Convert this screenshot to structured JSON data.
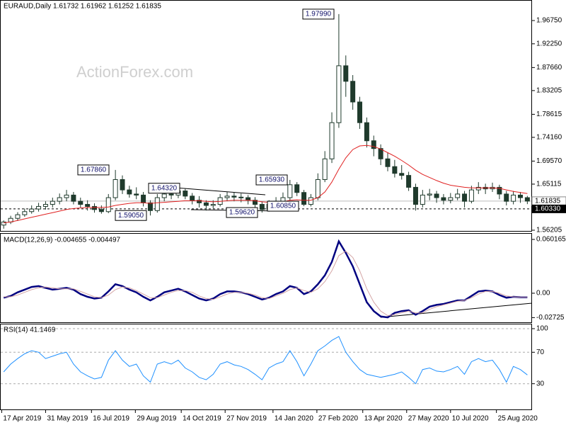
{
  "chart_data": [
    {
      "type": "candlestick",
      "title": "EURAUD,Daily  1.61732 1.61962 1.61252 1.61835",
      "watermark": "ActionForex.com",
      "x": [
        "2019-04-19",
        "2019-04-26",
        "2019-05-03",
        "2019-05-10",
        "2019-05-17",
        "2019-05-24",
        "2019-05-31",
        "2019-06-07",
        "2019-06-14",
        "2019-06-21",
        "2019-06-28",
        "2019-07-05",
        "2019-07-12",
        "2019-07-19",
        "2019-07-26",
        "2019-08-02",
        "2019-08-09",
        "2019-08-16",
        "2019-08-23",
        "2019-08-30",
        "2019-09-06",
        "2019-09-13",
        "2019-09-20",
        "2019-09-27",
        "2019-10-04",
        "2019-10-11",
        "2019-10-18",
        "2019-10-25",
        "2019-11-01",
        "2019-11-08",
        "2019-11-15",
        "2019-11-22",
        "2019-11-29",
        "2019-12-06",
        "2019-12-13",
        "2019-12-20",
        "2019-12-27",
        "2020-01-03",
        "2020-01-10",
        "2020-01-17",
        "2020-01-24",
        "2020-01-31",
        "2020-02-07",
        "2020-02-14",
        "2020-02-21",
        "2020-02-28",
        "2020-03-06",
        "2020-03-13",
        "2020-03-20",
        "2020-03-27",
        "2020-04-03",
        "2020-04-10",
        "2020-04-17",
        "2020-04-24",
        "2020-05-01",
        "2020-05-08",
        "2020-05-15",
        "2020-05-22",
        "2020-05-29",
        "2020-06-05",
        "2020-06-12",
        "2020-06-19",
        "2020-06-26",
        "2020-07-03",
        "2020-07-10",
        "2020-07-17",
        "2020-07-24",
        "2020-07-31",
        "2020-08-07",
        "2020-08-14",
        "2020-08-21",
        "2020-08-28",
        "2020-09-04",
        "2020-09-11",
        "2020-09-18",
        "2020-09-25"
      ],
      "open": [
        1.572,
        1.578,
        1.585,
        1.592,
        1.598,
        1.603,
        1.608,
        1.612,
        1.618,
        1.625,
        1.63,
        1.618,
        1.612,
        1.608,
        1.602,
        1.598,
        1.625,
        1.66,
        1.64,
        1.632,
        1.63,
        1.615,
        1.6,
        1.625,
        1.632,
        1.63,
        1.638,
        1.628,
        1.62,
        1.615,
        1.61,
        1.612,
        1.625,
        1.628,
        1.626,
        1.625,
        1.62,
        1.612,
        1.602,
        1.612,
        1.618,
        1.625,
        1.65,
        1.635,
        1.612,
        1.625,
        1.66,
        1.7,
        1.77,
        1.88,
        1.85,
        1.81,
        1.77,
        1.735,
        1.72,
        1.7,
        1.685,
        1.672,
        1.668,
        1.645,
        1.612,
        1.63,
        1.632,
        1.625,
        1.62,
        1.625,
        1.632,
        1.618,
        1.64,
        1.645,
        1.642,
        1.645,
        1.632,
        1.618,
        1.63,
        1.625
      ],
      "high": [
        1.581,
        1.59,
        1.597,
        1.604,
        1.61,
        1.615,
        1.618,
        1.625,
        1.633,
        1.64,
        1.636,
        1.625,
        1.62,
        1.614,
        1.61,
        1.632,
        1.6786,
        1.668,
        1.648,
        1.645,
        1.636,
        1.62,
        1.632,
        1.64,
        1.64,
        1.6432,
        1.642,
        1.634,
        1.628,
        1.62,
        1.62,
        1.632,
        1.636,
        1.635,
        1.633,
        1.63,
        1.626,
        1.618,
        1.62,
        1.626,
        1.635,
        1.6593,
        1.655,
        1.64,
        1.632,
        1.672,
        1.715,
        1.79,
        1.9799,
        1.9,
        1.862,
        1.82,
        1.78,
        1.745,
        1.728,
        1.712,
        1.698,
        1.688,
        1.675,
        1.652,
        1.64,
        1.642,
        1.638,
        1.632,
        1.634,
        1.642,
        1.638,
        1.648,
        1.655,
        1.652,
        1.654,
        1.65,
        1.638,
        1.638,
        1.636,
        1.6284
      ],
      "low": [
        1.565,
        1.574,
        1.58,
        1.588,
        1.594,
        1.598,
        1.602,
        1.606,
        1.612,
        1.618,
        1.612,
        1.606,
        1.6,
        1.596,
        1.594,
        1.595,
        1.62,
        1.632,
        1.625,
        1.622,
        1.608,
        1.5905,
        1.596,
        1.618,
        1.622,
        1.624,
        1.622,
        1.612,
        1.606,
        1.6,
        1.604,
        1.608,
        1.618,
        1.618,
        1.616,
        1.612,
        1.604,
        1.5962,
        1.598,
        1.606,
        1.612,
        1.62,
        1.628,
        1.6085,
        1.608,
        1.62,
        1.655,
        1.692,
        1.76,
        1.82,
        1.795,
        1.758,
        1.722,
        1.705,
        1.688,
        1.676,
        1.664,
        1.66,
        1.638,
        1.6,
        1.606,
        1.62,
        1.615,
        1.612,
        1.614,
        1.62,
        1.606,
        1.614,
        1.632,
        1.632,
        1.636,
        1.622,
        1.61,
        1.612,
        1.615,
        1.6125
      ],
      "close": [
        1.578,
        1.585,
        1.592,
        1.598,
        1.603,
        1.608,
        1.612,
        1.618,
        1.625,
        1.63,
        1.618,
        1.612,
        1.608,
        1.602,
        1.598,
        1.625,
        1.66,
        1.64,
        1.632,
        1.63,
        1.615,
        1.6,
        1.625,
        1.632,
        1.63,
        1.638,
        1.628,
        1.62,
        1.615,
        1.61,
        1.612,
        1.625,
        1.628,
        1.626,
        1.625,
        1.62,
        1.612,
        1.602,
        1.612,
        1.618,
        1.625,
        1.65,
        1.635,
        1.612,
        1.625,
        1.66,
        1.7,
        1.77,
        1.88,
        1.85,
        1.81,
        1.77,
        1.735,
        1.72,
        1.7,
        1.685,
        1.672,
        1.668,
        1.645,
        1.612,
        1.63,
        1.632,
        1.625,
        1.62,
        1.625,
        1.632,
        1.618,
        1.64,
        1.645,
        1.642,
        1.645,
        1.632,
        1.618,
        1.63,
        1.625,
        1.61835
      ],
      "color": "#1f3a2c",
      "ma": {
        "color": "#e02020",
        "values": [
          1.576,
          1.578,
          1.581,
          1.584,
          1.587,
          1.59,
          1.593,
          1.596,
          1.599,
          1.602,
          1.604,
          1.605,
          1.606,
          1.606,
          1.606,
          1.607,
          1.61,
          1.612,
          1.614,
          1.615,
          1.615,
          1.614,
          1.615,
          1.616,
          1.617,
          1.618,
          1.619,
          1.619,
          1.619,
          1.618,
          1.617,
          1.618,
          1.619,
          1.62,
          1.62,
          1.62,
          1.619,
          1.617,
          1.616,
          1.616,
          1.617,
          1.62,
          1.621,
          1.62,
          1.62,
          1.625,
          1.636,
          1.655,
          1.68,
          1.702,
          1.718,
          1.725,
          1.726,
          1.724,
          1.719,
          1.712,
          1.705,
          1.697,
          1.688,
          1.678,
          1.67,
          1.664,
          1.658,
          1.653,
          1.649,
          1.647,
          1.645,
          1.644,
          1.644,
          1.644,
          1.644,
          1.643,
          1.64,
          1.637,
          1.635,
          1.633
        ]
      },
      "xlim": [
        "2019-04-16",
        "2020-09-29"
      ],
      "xticks": [
        {
          "value": "2019-04-17",
          "label": "17 Apr 2019"
        },
        {
          "value": "2019-05-31",
          "label": "31 May 2019"
        },
        {
          "value": "2019-07-16",
          "label": "16 Jul 2019"
        },
        {
          "value": "2019-08-29",
          "label": "29 Aug 2019"
        },
        {
          "value": "2019-10-14",
          "label": "14 Oct 2019"
        },
        {
          "value": "2019-11-27",
          "label": "27 Nov 2019"
        },
        {
          "value": "2020-01-14",
          "label": "14 Jan 2020"
        },
        {
          "value": "2020-02-27",
          "label": "27 Feb 2020"
        },
        {
          "value": "2020-04-13",
          "label": "13 Apr 2020"
        },
        {
          "value": "2020-05-27",
          "label": "27 May 2020"
        },
        {
          "value": "2020-07-10",
          "label": "10 Jul 2020"
        },
        {
          "value": "2020-08-25",
          "label": "25 Aug 2020"
        }
      ],
      "ylim": [
        1.56205,
        2.0072
      ],
      "yticks": [
        {
          "value": 1.9675,
          "label": "1.96750"
        },
        {
          "value": 1.9225,
          "label": "1.92250"
        },
        {
          "value": 1.8766,
          "label": "1.87660"
        },
        1.83205,
        1.78615,
        {
          "value": 1.7416,
          "label": "1.74160"
        },
        {
          "value": 1.6957,
          "label": "1.69570"
        },
        1.65115,
        1.56205
      ],
      "last_price": 1.61835,
      "level": {
        "value": 1.6033,
        "label": "1.60330"
      },
      "annotations": [
        {
          "value": 1.9799,
          "label": "1.97990"
        },
        {
          "value": 1.6786,
          "label": "1.67860"
        },
        {
          "value": 1.6432,
          "label": "1.64320"
        },
        {
          "value": 1.6593,
          "label": "1.65930"
        },
        {
          "value": 1.5905,
          "label": "1.59050"
        },
        {
          "value": 1.5962,
          "label": "1.59620"
        },
        {
          "value": 1.6085,
          "label": "1.60850"
        }
      ]
    },
    {
      "type": "line",
      "title": "MACD(12,26,9) -0.004655 -0.004497",
      "series": [
        {
          "color": "#000080",
          "values": [
            -0.005,
            -0.003,
            0.001,
            0.004,
            0.007,
            0.008,
            0.006,
            0.004,
            0.005,
            0.006,
            0.004,
            -0.001,
            -0.004,
            -0.006,
            -0.005,
            0.002,
            0.01,
            0.008,
            0.004,
            0.001,
            -0.004,
            -0.008,
            -0.004,
            0.001,
            0.003,
            0.005,
            0.002,
            -0.002,
            -0.006,
            -0.008,
            -0.006,
            -0.001,
            0.002,
            0.002,
            0.001,
            -0.001,
            -0.004,
            -0.007,
            -0.005,
            -0.001,
            0.002,
            0.008,
            0.006,
            -0.001,
            0.002,
            0.01,
            0.02,
            0.035,
            0.058,
            0.045,
            0.03,
            0.01,
            -0.01,
            -0.02,
            -0.026,
            -0.027,
            -0.022,
            -0.02,
            -0.019,
            -0.024,
            -0.02,
            -0.015,
            -0.013,
            -0.012,
            -0.01,
            -0.008,
            -0.008,
            -0.003,
            0.002,
            0.003,
            0.002,
            -0.002,
            -0.005,
            -0.004,
            -0.0045,
            -0.004655
          ]
        },
        {
          "color": "#d4a5a5",
          "values": [
            -0.004,
            -0.004,
            -0.002,
            0.001,
            0.004,
            0.006,
            0.007,
            0.006,
            0.005,
            0.005,
            0.005,
            0.002,
            -0.001,
            -0.004,
            -0.005,
            -0.002,
            0.004,
            0.007,
            0.006,
            0.003,
            -0.001,
            -0.005,
            -0.005,
            -0.002,
            0.001,
            0.003,
            0.003,
            0.001,
            -0.003,
            -0.006,
            -0.007,
            -0.004,
            -0.001,
            0.001,
            0.001,
            0.0,
            -0.002,
            -0.005,
            -0.006,
            -0.003,
            0.0,
            0.004,
            0.006,
            0.003,
            0.001,
            0.005,
            0.013,
            0.025,
            0.042,
            0.047,
            0.04,
            0.025,
            0.005,
            -0.01,
            -0.02,
            -0.025,
            -0.024,
            -0.022,
            -0.02,
            -0.022,
            -0.022,
            -0.018,
            -0.015,
            -0.013,
            -0.011,
            -0.009,
            -0.008,
            -0.005,
            -0.001,
            0.002,
            0.002,
            0.0,
            -0.003,
            -0.004,
            -0.0044,
            -0.004497
          ]
        }
      ],
      "ylim": [
        -0.0325,
        0.0665
      ],
      "yticks": [
        0.060165,
        {
          "value": 0,
          "label": "0.00"
        },
        -0.02725
      ]
    },
    {
      "type": "line",
      "title": "RSI(14) 41.1469",
      "series": [
        {
          "color": "#1e90ff",
          "values": [
            45,
            55,
            62,
            68,
            72,
            70,
            62,
            65,
            68,
            70,
            55,
            45,
            40,
            36,
            38,
            60,
            72,
            60,
            52,
            55,
            40,
            32,
            55,
            58,
            55,
            60,
            50,
            45,
            38,
            35,
            42,
            55,
            58,
            54,
            52,
            48,
            42,
            35,
            50,
            55,
            58,
            72,
            58,
            40,
            55,
            72,
            78,
            85,
            90,
            70,
            58,
            48,
            42,
            40,
            38,
            40,
            42,
            45,
            38,
            30,
            48,
            50,
            46,
            45,
            48,
            52,
            42,
            58,
            62,
            58,
            60,
            48,
            32,
            52,
            48,
            41.1469
          ]
        }
      ],
      "ylim": [
        0,
        100
      ],
      "yticks": [
        100,
        70,
        30
      ],
      "grid": true
    }
  ]
}
